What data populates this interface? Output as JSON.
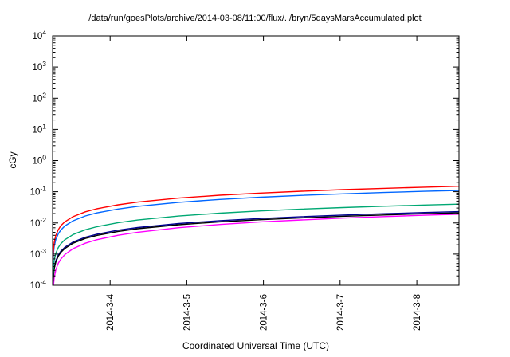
{
  "page": {
    "background": "#ffffff"
  },
  "chart_data": {
    "type": "line",
    "title": "/data/run/goesPlots/archive/2014-03-08/11:00/flux/../bryn/5daysMarsAccumulated.plot",
    "xlabel": "Coordinated Universal Time (UTC)",
    "ylabel": "cGy",
    "y_scale": "log",
    "ylim": [
      0.0001,
      10000
    ],
    "y_tick_exponents": [
      4,
      3,
      2,
      1,
      0,
      -1,
      -2,
      -3,
      -4
    ],
    "grid": false,
    "legend": "none",
    "xlim_days": [
      0,
      5.3
    ],
    "x_ticks": [
      {
        "t": 0.75,
        "label": "2014-3-4"
      },
      {
        "t": 1.75,
        "label": "2014-3-5"
      },
      {
        "t": 2.75,
        "label": "2014-3-6"
      },
      {
        "t": 3.75,
        "label": "2014-3-7"
      },
      {
        "t": 4.75,
        "label": "2014-3-8"
      }
    ],
    "x_days": [
      0.001,
      0.002,
      0.005,
      0.011,
      0.021,
      0.043,
      0.075,
      0.107,
      0.16,
      0.267,
      0.427,
      0.577,
      0.855,
      1.111,
      1.646,
      2.18,
      2.714,
      3.249,
      3.783,
      4.317,
      4.851,
      5.3
    ],
    "series": [
      {
        "name": "magenta",
        "color": "#ff00ff",
        "values": [
          1.2e-05,
          2.5e-05,
          5.4e-05,
          9.7e-05,
          0.000175,
          0.00032,
          0.00051,
          0.00069,
          0.00097,
          0.0015,
          0.00224,
          0.00289,
          0.00403,
          0.00504,
          0.00703,
          0.00893,
          0.0108,
          0.0125,
          0.0143,
          0.016,
          0.0176,
          0.019
        ]
      },
      {
        "name": "navy",
        "color": "#000090",
        "values": [
          4e-05,
          6.6e-05,
          0.00013,
          0.00022,
          0.00037,
          0.00062,
          0.00094,
          0.00124,
          0.00167,
          0.00244,
          0.00348,
          0.00436,
          0.00586,
          0.00713,
          0.00957,
          0.0118,
          0.0139,
          0.0159,
          0.0179,
          0.0197,
          0.0215,
          0.023
        ]
      },
      {
        "name": "black",
        "color": "#000000",
        "values": [
          3.5e-05,
          6e-05,
          0.00012,
          0.0002,
          0.00034,
          0.00056,
          0.00086,
          0.00113,
          0.00152,
          0.00223,
          0.00318,
          0.00398,
          0.00535,
          0.00651,
          0.00874,
          0.0108,
          0.0127,
          0.0145,
          0.0163,
          0.018,
          0.0197,
          0.021
        ]
      },
      {
        "name": "green",
        "color": "#00a873",
        "values": [
          6.5e-05,
          0.00011,
          0.00023,
          0.00038,
          0.00064,
          0.00108,
          0.00164,
          0.00215,
          0.0029,
          0.00425,
          0.00606,
          0.00758,
          0.0102,
          0.0124,
          0.0166,
          0.0206,
          0.0242,
          0.0277,
          0.0311,
          0.0343,
          0.0374,
          0.04
        ]
      },
      {
        "name": "blue",
        "color": "#0066ff",
        "values": [
          0.00018,
          0.00031,
          0.00062,
          0.00105,
          0.00176,
          0.00296,
          0.0045,
          0.0059,
          0.008,
          0.0117,
          0.0167,
          0.0209,
          0.028,
          0.0341,
          0.0458,
          0.0565,
          0.0666,
          0.0762,
          0.0854,
          0.0943,
          0.1029,
          0.11
        ]
      },
      {
        "name": "red",
        "color": "#ff0000",
        "values": [
          0.00025,
          0.00043,
          0.00085,
          0.0014,
          0.0024,
          0.004,
          0.0061,
          0.0081,
          0.0109,
          0.0159,
          0.0227,
          0.0284,
          0.0382,
          0.0465,
          0.0624,
          0.0771,
          0.0908,
          0.1039,
          0.1165,
          0.1286,
          0.1404,
          0.15
        ]
      }
    ]
  }
}
